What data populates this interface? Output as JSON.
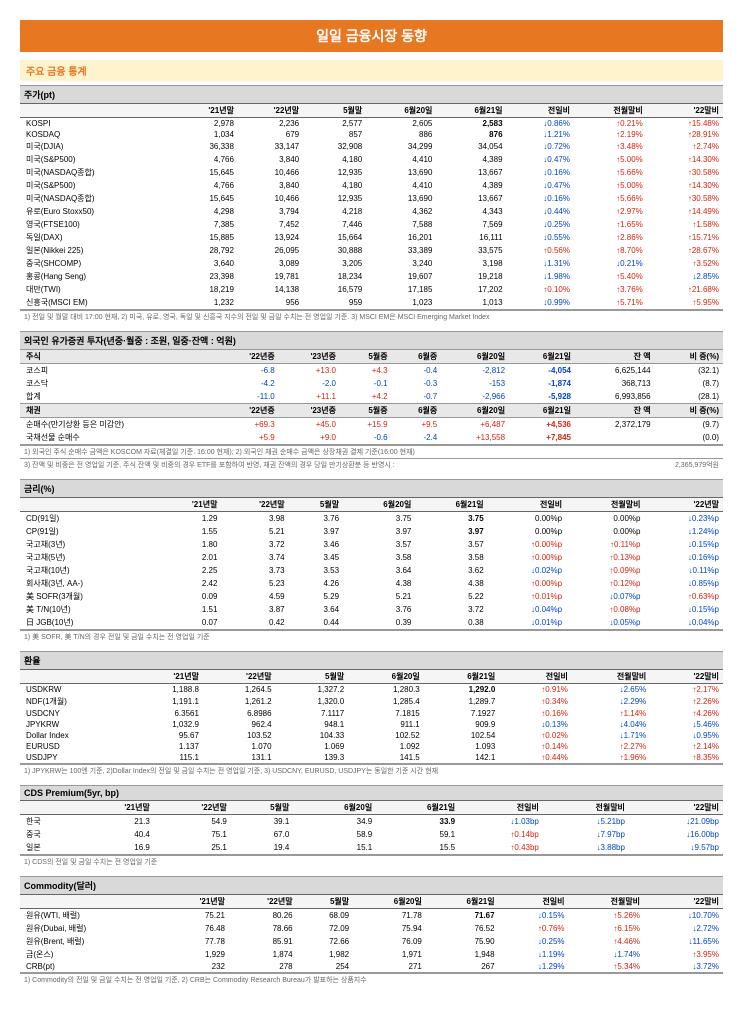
{
  "title": "일일 금융시장 동향",
  "subtitle": "주요 금융 통계",
  "stock": {
    "header": "주가(pt)",
    "cols": [
      "",
      "'21년말",
      "'22년말",
      "5월말",
      "6월20일",
      "6월21일",
      "전일비",
      "전월말비",
      "'22말비"
    ],
    "rows": [
      {
        "n": "KOSPI",
        "c": [
          "2,978",
          "2,236",
          "2,577",
          "2,605",
          "2,583"
        ],
        "d1": "↓0.86%",
        "d2": "↑0.21%",
        "d3": "↑15.48%",
        "b": true
      },
      {
        "n": "KOSDAQ",
        "c": [
          "1,034",
          "679",
          "857",
          "886",
          "876"
        ],
        "d1": "↓1.21%",
        "d2": "↑2.19%",
        "d3": "↑28.91%",
        "b": true
      },
      {
        "n": "미국(DJIA)",
        "c": [
          "36,338",
          "33,147",
          "32,908",
          "34,299",
          "34,054"
        ],
        "d1": "↓0.72%",
        "d2": "↑3.48%",
        "d3": "↑2.74%"
      },
      {
        "n": "미국(S&P500)",
        "c": [
          "4,766",
          "3,840",
          "4,180",
          "4,410",
          "4,389"
        ],
        "d1": "↓0.47%",
        "d2": "↑5.00%",
        "d3": "↑14.30%"
      },
      {
        "n": "미국(NASDAQ종합)",
        "c": [
          "15,645",
          "10,466",
          "12,935",
          "13,690",
          "13,667"
        ],
        "d1": "↓0.16%",
        "d2": "↑5.66%",
        "d3": "↑30.58%"
      },
      {
        "n": "미국(S&P500)",
        "c": [
          "4,766",
          "3,840",
          "4,180",
          "4,410",
          "4,389"
        ],
        "d1": "↓0.47%",
        "d2": "↑5.00%",
        "d3": "↑14.30%"
      },
      {
        "n": "미국(NASDAQ종합)",
        "c": [
          "15,645",
          "10,466",
          "12,935",
          "13,690",
          "13,667"
        ],
        "d1": "↓0.16%",
        "d2": "↑5.66%",
        "d3": "↑30.58%"
      },
      {
        "n": "유로(Euro Stoxx50)",
        "c": [
          "4,298",
          "3,794",
          "4,218",
          "4,362",
          "4,343"
        ],
        "d1": "↓0.44%",
        "d2": "↑2.97%",
        "d3": "↑14.49%"
      },
      {
        "n": "영국(FTSE100)",
        "c": [
          "7,385",
          "7,452",
          "7,446",
          "7,588",
          "7,569"
        ],
        "d1": "↓0.25%",
        "d2": "↑1.65%",
        "d3": "↑1.58%"
      },
      {
        "n": "독일(DAX)",
        "c": [
          "15,885",
          "13,924",
          "15,664",
          "16,201",
          "16,111"
        ],
        "d1": "↓0.55%",
        "d2": "↑2.86%",
        "d3": "↑15.71%"
      },
      {
        "n": "일본(Nikkei 225)",
        "c": [
          "28,792",
          "26,095",
          "30,888",
          "33,389",
          "33,575"
        ],
        "d1": "↑0.56%",
        "d2": "↑8.70%",
        "d3": "↑28.67%"
      },
      {
        "n": "중국(SHCOMP)",
        "c": [
          "3,640",
          "3,089",
          "3,205",
          "3,240",
          "3,198"
        ],
        "d1": "↓1.31%",
        "d2": "↓0.21%",
        "d3": "↑3.52%"
      },
      {
        "n": "홍콩(Hang Seng)",
        "c": [
          "23,398",
          "19,781",
          "18,234",
          "19,607",
          "19,218"
        ],
        "d1": "↓1.98%",
        "d2": "↑5.40%",
        "d3": "↓2.85%"
      },
      {
        "n": "대만(TWI)",
        "c": [
          "18,219",
          "14,138",
          "16,579",
          "17,185",
          "17,202"
        ],
        "d1": "↑0.10%",
        "d2": "↑3.76%",
        "d3": "↑21.68%"
      },
      {
        "n": "신흥국(MSCI EM)",
        "c": [
          "1,232",
          "956",
          "959",
          "1,023",
          "1,013"
        ],
        "d1": "↓0.99%",
        "d2": "↑5.71%",
        "d3": "↑5.95%"
      }
    ],
    "note": "1) 전일 및 월말 대비 17:00 현재, 2) 미국, 유로, 영국, 독일 및 신흥국 지수의 전일 및 금일 수치는 전 영업일 기준. 3) MSCI EM은 MSCI Emerging Market Index"
  },
  "foreign": {
    "header": "외국인 유가증권 투자(년중·월중 : 조원, 일중·잔액 : 억원)",
    "cols1": [
      "주식",
      "'22년중",
      "'23년중",
      "5월중",
      "6월중",
      "6월20일",
      "6월21일",
      "잔 액",
      "비 중(%)"
    ],
    "rows1": [
      {
        "n": "코스피",
        "c": [
          "-6.8",
          "+13.0",
          "+4.3",
          "-0.4",
          "-2,812",
          "-4,054",
          "6,625,144",
          "(32.1)"
        ]
      },
      {
        "n": "코스닥",
        "c": [
          "-4.2",
          "-2.0",
          "-0.1",
          "-0.3",
          "-153",
          "-1,874",
          "368,713",
          "(8.7)"
        ]
      },
      {
        "n": "합계",
        "c": [
          "-11.0",
          "+11.1",
          "+4.2",
          "-0.7",
          "-2,966",
          "-5,928",
          "6,993,856",
          "(28.1)"
        ]
      }
    ],
    "cols2": [
      "채권",
      "'22년중",
      "'23년중",
      "5월중",
      "6월중",
      "6월20일",
      "6월21일",
      "잔 액",
      "비 중(%)"
    ],
    "rows2": [
      {
        "n": "순매수(만기상환 등은 미감안)",
        "c": [
          "+69.3",
          "+45.0",
          "+15.9",
          "+9.5",
          "+6,487",
          "+4,536",
          "2,372,179",
          "(9.7)"
        ]
      },
      {
        "n": "국채선물 순매수",
        "c": [
          "+5.9",
          "+9.0",
          "-0.6",
          "-2.4",
          "+13,558",
          "+7,845",
          "",
          "(0.0)"
        ]
      }
    ],
    "note": "1) 외국인 주식 순매수 금액은 KOSCOM 자료(체결일 기준. 16:00 현재); 2) 외국인 채권 순매수 금액은 상장채권 결제 기준(16:00 현재)",
    "note2": "3) 잔액 및 비중은 전 영업일 기준, 주식 잔액 및 비중의 경우 ETF를 포함하여 반영, 채권 잔액의 경우 당일 만기상환분 등 반영시 :",
    "note2v": "2,365,979억원"
  },
  "rates": {
    "header": "금리(%)",
    "cols": [
      "",
      "'21년말",
      "'22년말",
      "5월말",
      "6월20일",
      "6월21일",
      "전일비",
      "전월말비",
      "'22년말"
    ],
    "rows": [
      {
        "n": "CD(91일)",
        "c": [
          "1.29",
          "3.98",
          "3.76",
          "3.75",
          "3.75"
        ],
        "d1": "0.00%p",
        "d2": "0.00%p",
        "d3": "↓0.23%p",
        "b": true
      },
      {
        "n": "CP(91일)",
        "c": [
          "1.55",
          "5.21",
          "3.97",
          "3.97",
          "3.97"
        ],
        "d1": "0.00%p",
        "d2": "0.00%p",
        "d3": "↓1.24%p",
        "b": true
      },
      {
        "n": "국고채(3년)",
        "c": [
          "1.80",
          "3.72",
          "3.46",
          "3.57",
          "3.57"
        ],
        "d1": "↑0.00%p",
        "d2": "↑0.11%p",
        "d3": "↓0.15%p"
      },
      {
        "n": "국고채(5년)",
        "c": [
          "2.01",
          "3.74",
          "3.45",
          "3.58",
          "3.58"
        ],
        "d1": "↑0.00%p",
        "d2": "↑0.13%p",
        "d3": "↓0.16%p"
      },
      {
        "n": "국고채(10년)",
        "c": [
          "2.25",
          "3.73",
          "3.53",
          "3.64",
          "3.62"
        ],
        "d1": "↓0.02%p",
        "d2": "↑0.09%p",
        "d3": "↓0.11%p"
      },
      {
        "n": "회사채(3년, AA-)",
        "c": [
          "2.42",
          "5.23",
          "4.26",
          "4.38",
          "4.38"
        ],
        "d1": "↑0.00%p",
        "d2": "↑0.12%p",
        "d3": "↓0.85%p"
      },
      {
        "n": "美 SOFR(3개월)",
        "c": [
          "0.09",
          "4.59",
          "5.29",
          "5.21",
          "5.22"
        ],
        "d1": "↑0.01%p",
        "d2": "↓0.07%p",
        "d3": "↑0.63%p"
      },
      {
        "n": "美 T/N(10년)",
        "c": [
          "1.51",
          "3.87",
          "3.64",
          "3.76",
          "3.72"
        ],
        "d1": "↓0.04%p",
        "d2": "↑0.08%p",
        "d3": "↓0.15%p"
      },
      {
        "n": "日 JGB(10년)",
        "c": [
          "0.07",
          "0.42",
          "0.44",
          "0.39",
          "0.38"
        ],
        "d1": "↓0.01%p",
        "d2": "↓0.05%p",
        "d3": "↓0.04%p"
      }
    ],
    "note": "1) 美 SOFR, 美 T/N의 경우 전일 및 금일 수치는 전 영업일 기준"
  },
  "fx": {
    "header": "환율",
    "cols": [
      "",
      "'21년말",
      "'22년말",
      "5월말",
      "6월20일",
      "6월21일",
      "전일비",
      "전월말비",
      "'22말비"
    ],
    "rows": [
      {
        "n": "USDKRW",
        "c": [
          "1,188.8",
          "1,264.5",
          "1,327.2",
          "1,280.3",
          "1,292.0"
        ],
        "d1": "↑0.91%",
        "d2": "↓2.65%",
        "d3": "↑2.17%",
        "b": true
      },
      {
        "n": "  NDF(1개월)",
        "c": [
          "1,191.1",
          "1,261.2",
          "1,320.0",
          "1,285.4",
          "1,289.7"
        ],
        "d1": "↑0.34%",
        "d2": "↓2.29%",
        "d3": "↑2.26%"
      },
      {
        "n": "USDCNY",
        "c": [
          "6.3561",
          "6.8986",
          "7.1117",
          "7.1815",
          "7.1927"
        ],
        "d1": "↑0.16%",
        "d2": "↑1.14%",
        "d3": "↑4.26%"
      },
      {
        "n": "JPYKRW",
        "c": [
          "1,032.9",
          "962.4",
          "948.1",
          "911.1",
          "909.9"
        ],
        "d1": "↓0.13%",
        "d2": "↓4.04%",
        "d3": "↓5.46%"
      },
      {
        "n": "Dollar Index",
        "c": [
          "95.67",
          "103.52",
          "104.33",
          "102.52",
          "102.54"
        ],
        "d1": "↑0.02%",
        "d2": "↓1.71%",
        "d3": "↓0.95%"
      },
      {
        "n": "EURUSD",
        "c": [
          "1.137",
          "1.070",
          "1.069",
          "1.092",
          "1.093"
        ],
        "d1": "↑0.14%",
        "d2": "↑2.27%",
        "d3": "↑2.14%"
      },
      {
        "n": "USDJPY",
        "c": [
          "115.1",
          "131.1",
          "139.3",
          "141.5",
          "142.1"
        ],
        "d1": "↑0.44%",
        "d2": "↑1.96%",
        "d3": "↑8.35%"
      }
    ],
    "note": "1) JPYKRW는 100엔 기준, 2)Dollar Index의 전일 및 금일 수치는 전 영업일 기준, 3) USDCNY, EURUSD, USDJPY는 동일한 기준 시간 현재"
  },
  "cds": {
    "header": "CDS Premium(5yr, bp)",
    "cols": [
      "",
      "'21년말",
      "'22년말",
      "5월말",
      "6월20일",
      "6월21일",
      "전일비",
      "전월말비",
      "'22말비"
    ],
    "rows": [
      {
        "n": "한국",
        "c": [
          "21.3",
          "54.9",
          "39.1",
          "34.9",
          "33.9"
        ],
        "d1": "↓1.03bp",
        "d2": "↓5.21bp",
        "d3": "↓21.09bp",
        "b": true
      },
      {
        "n": "중국",
        "c": [
          "40.4",
          "75.1",
          "67.0",
          "58.9",
          "59.1"
        ],
        "d1": "↑0.14bp",
        "d2": "↓7.97bp",
        "d3": "↓16.00bp"
      },
      {
        "n": "일본",
        "c": [
          "16.9",
          "25.1",
          "19.4",
          "15.1",
          "15.5"
        ],
        "d1": "↑0.43bp",
        "d2": "↓3.88bp",
        "d3": "↓9.57bp"
      }
    ],
    "note": "1) CDS의 전일 및 금일 수치는 전 영업일 기준"
  },
  "commodity": {
    "header": "Commodity(달러)",
    "cols": [
      "",
      "'21년말",
      "'22년말",
      "5월말",
      "6월20일",
      "6월21일",
      "전일비",
      "전월말비",
      "'22말비"
    ],
    "rows": [
      {
        "n": "원유(WTI, 배럴)",
        "c": [
          "75.21",
          "80.26",
          "68.09",
          "71.78",
          "71.67"
        ],
        "d1": "↓0.15%",
        "d2": "↑5.26%",
        "d3": "↓10.70%",
        "b": true
      },
      {
        "n": "원유(Dubai, 배럴)",
        "c": [
          "76.48",
          "78.66",
          "72.09",
          "75.94",
          "76.52"
        ],
        "d1": "↑0.76%",
        "d2": "↑6.15%",
        "d3": "↓2.72%"
      },
      {
        "n": "원유(Brent, 배럴)",
        "c": [
          "77.78",
          "85.91",
          "72.66",
          "76.09",
          "75.90"
        ],
        "d1": "↓0.25%",
        "d2": "↑4.46%",
        "d3": "↓11.65%"
      },
      {
        "n": "금(온스)",
        "c": [
          "1,929",
          "1,874",
          "1,982",
          "1,971",
          "1,948"
        ],
        "d1": "↓1.19%",
        "d2": "↓1.74%",
        "d3": "↑3.95%"
      },
      {
        "n": "CRB(pt)",
        "c": [
          "232",
          "278",
          "254",
          "271",
          "267"
        ],
        "d1": "↓1.29%",
        "d2": "↑5.34%",
        "d3": "↓3.72%"
      }
    ],
    "note": "1) Commodity의 전일 및 금일 수치는 전 영업일 기준, 2) CRB는 Commodity Research Bureau가 발표하는 상품지수"
  }
}
